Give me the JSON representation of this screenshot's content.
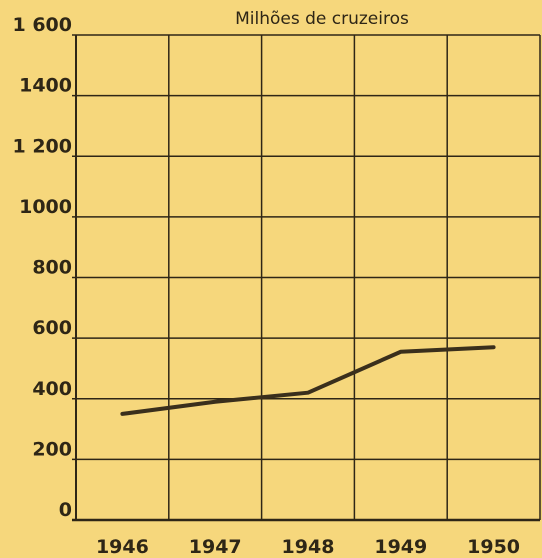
{
  "chart_data": {
    "type": "line",
    "title": "Milhões de cruzeiros",
    "categories": [
      "1946",
      "1947",
      "1948",
      "1949",
      "1950"
    ],
    "values": [
      350,
      390,
      420,
      555,
      570
    ],
    "color": "#3a2f1c",
    "ylim": [
      0,
      1600
    ],
    "yticks": [
      0,
      200,
      400,
      600,
      800,
      {
        "value": 1000,
        "label": "1000"
      },
      {
        "value": 1200,
        "label": "1 200"
      },
      1400,
      {
        "value": 1600,
        "label": "1 600"
      }
    ],
    "grid": true
  }
}
